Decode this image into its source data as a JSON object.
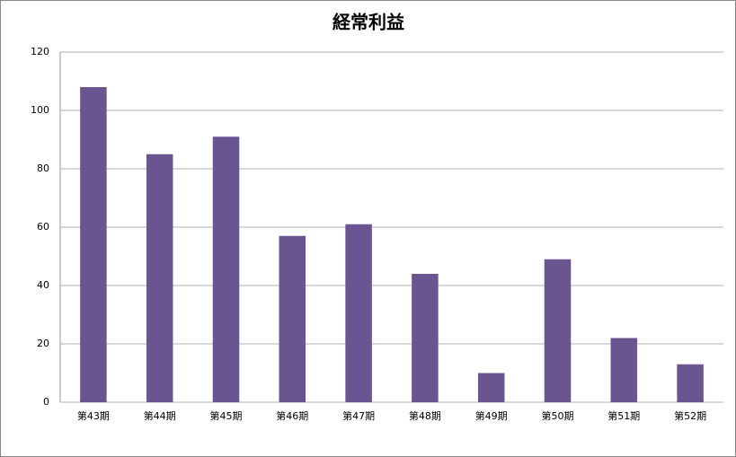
{
  "chart_data": {
    "type": "bar",
    "title": "経常利益",
    "categories": [
      "第43期",
      "第44期",
      "第45期",
      "第46期",
      "第47期",
      "第48期",
      "第49期",
      "第50期",
      "第51期",
      "第52期"
    ],
    "values": [
      108,
      85,
      91,
      57,
      61,
      44,
      10,
      49,
      22,
      13
    ],
    "color": "#6b5590",
    "ylim": [
      0,
      120
    ],
    "yticks": [
      0,
      20,
      40,
      60,
      80,
      100,
      120
    ],
    "grid": true
  }
}
